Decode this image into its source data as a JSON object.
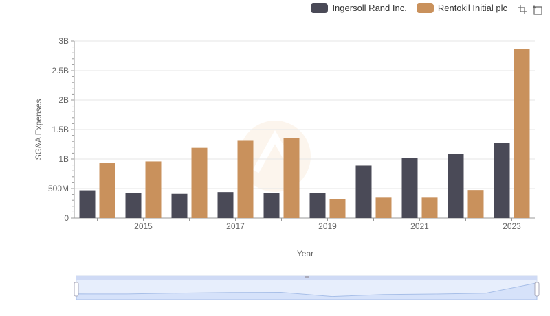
{
  "legend": {
    "items": [
      {
        "name": "Ingersoll Rand Inc.",
        "color": "#4a4a57"
      },
      {
        "name": "Rentokil Initial plc",
        "color": "#c9915c"
      }
    ]
  },
  "toolbox": {
    "icons": [
      "zoom-icon",
      "restore-icon"
    ]
  },
  "chart_data": {
    "type": "bar",
    "xlabel": "Year",
    "ylabel": "SG&A Expenses",
    "categories": [
      "2014",
      "2015",
      "2016",
      "2017",
      "2018",
      "2019",
      "2020",
      "2021",
      "2022",
      "2023"
    ],
    "x_tick_labels": [
      "2015",
      "2017",
      "2019",
      "2021",
      "2023"
    ],
    "y_ticks": [
      0,
      500000000,
      1000000000,
      1500000000,
      2000000000,
      2500000000,
      3000000000
    ],
    "y_tick_labels": [
      "0",
      "500M",
      "1B",
      "1.5B",
      "2B",
      "2.5B",
      "3B"
    ],
    "ylim": [
      0,
      3000000000
    ],
    "grid": true,
    "legend_position": "top-right",
    "series": [
      {
        "name": "Ingersoll Rand Inc.",
        "color": "#4a4a57",
        "values": [
          470000000,
          425000000,
          410000000,
          440000000,
          430000000,
          430000000,
          890000000,
          1020000000,
          1090000000,
          1270000000
        ]
      },
      {
        "name": "Rentokil Initial plc",
        "color": "#c9915c",
        "values": [
          930000000,
          960000000,
          1190000000,
          1320000000,
          1360000000,
          320000000,
          345000000,
          345000000,
          475000000,
          2870000000
        ]
      }
    ]
  }
}
